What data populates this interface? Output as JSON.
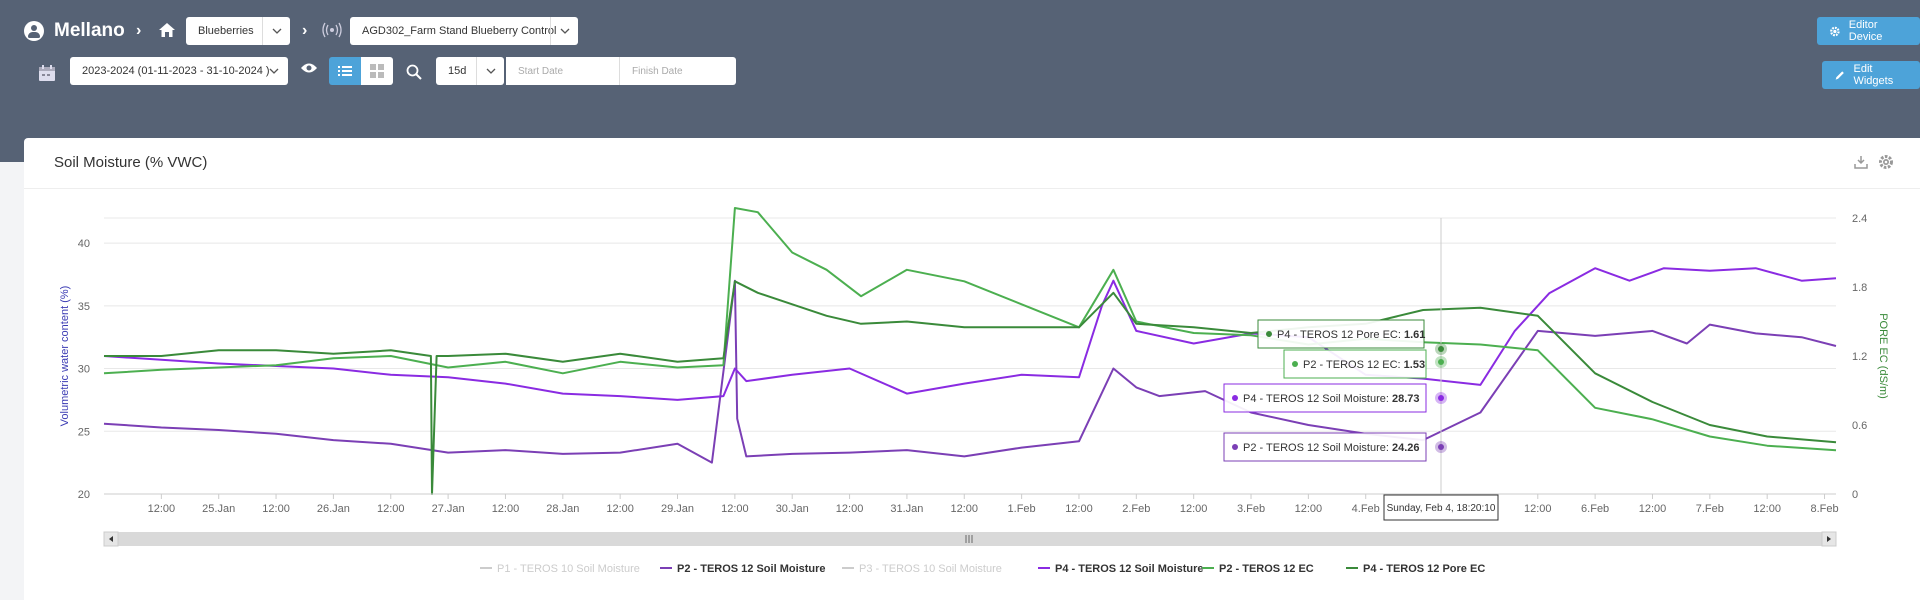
{
  "header": {
    "brand": "Mellano",
    "farm_select": "Blueberries",
    "device_select": "AGD302_Farm Stand Blueberry Control",
    "editor_device_label": "Editor Device",
    "edit_widgets_label": "Edit Widgets",
    "season_select": "2023-2024 (01-11-2023 - 31-10-2024 )",
    "range_select": "15d",
    "start_date_placeholder": "Start Date",
    "finish_date_placeholder": "Finish Date"
  },
  "widget": {
    "title": "Soil Moisture (% VWC)"
  },
  "chart_data": {
    "type": "line",
    "y_left_label": "Volumetric water content (%)",
    "y_right_label": "PORE EC (dS/m)",
    "y_left_ticks": [
      "20",
      "25",
      "30",
      "35",
      "40"
    ],
    "y_right_ticks": [
      "0",
      "0.6",
      "1.2",
      "1.8",
      "2.4"
    ],
    "y_left_range": [
      20,
      42
    ],
    "y_right_range": [
      0,
      2.4
    ],
    "x_range_days": [
      0,
      15.1
    ],
    "x_tick_labels": [
      "12:00",
      "25.Jan",
      "12:00",
      "26.Jan",
      "12:00",
      "27.Jan",
      "12:00",
      "28.Jan",
      "12:00",
      "29.Jan",
      "12:00",
      "30.Jan",
      "12:00",
      "31.Jan",
      "12:00",
      "1.Feb",
      "12:00",
      "2.Feb",
      "12:00",
      "3.Feb",
      "12:00",
      "4.Feb",
      "12:00",
      "5.Feb",
      "12:00",
      "6.Feb",
      "12:00",
      "7.Feb",
      "12:00",
      "8.Feb"
    ],
    "crosshair_label": "Sunday, Feb 4, 18:20:10",
    "tooltips": [
      {
        "series": "P4 - TEROS 12 Pore EC",
        "value": "1.61",
        "color": "#3a8a3a"
      },
      {
        "series": "P2 - TEROS 12 EC",
        "value": "1.53",
        "color": "#4caf50"
      },
      {
        "series": "P4 - TEROS 12 Soil Moisture",
        "value": "28.73",
        "color": "#8a2be2"
      },
      {
        "series": "P2 - TEROS 12 Soil Moisture",
        "value": "24.26",
        "color": "#7b3fb5"
      }
    ],
    "legend": [
      {
        "name": "P1 - TEROS 10 Soil Moisture",
        "color": "#cccccc",
        "hidden": true
      },
      {
        "name": "P2 - TEROS 12 Soil Moisture",
        "color": "#7b3fb5",
        "hidden": false
      },
      {
        "name": "P3 - TEROS 10 Soil Moisture",
        "color": "#cccccc",
        "hidden": true
      },
      {
        "name": "P4 - TEROS 12 Soil Moisture",
        "color": "#8a2be2",
        "hidden": false
      },
      {
        "name": "P2 - TEROS 12 EC",
        "color": "#4caf50",
        "hidden": false
      },
      {
        "name": "P4 - TEROS 12 Pore EC",
        "color": "#3a8a3a",
        "hidden": false
      }
    ],
    "series": [
      {
        "name": "P2 - TEROS 12 Soil Moisture",
        "axis": "left",
        "color": "#7b3fb5",
        "x": [
          0,
          0.5,
          1,
          1.5,
          2,
          2.5,
          3,
          3.5,
          4,
          4.5,
          5,
          5.3,
          5.5,
          5.52,
          5.6,
          6,
          6.5,
          7,
          7.5,
          8,
          8.5,
          8.8,
          9,
          9.2,
          9.6,
          10,
          10.5,
          11,
          11.5,
          12,
          12.5,
          13,
          13.5,
          13.8,
          14,
          14.4,
          14.8,
          15.1
        ],
        "y": [
          25.6,
          25.3,
          25.1,
          24.8,
          24.3,
          24.0,
          23.3,
          23.5,
          23.2,
          23.3,
          24,
          22.5,
          37,
          26,
          23,
          23.2,
          23.3,
          23.5,
          23,
          23.7,
          24.2,
          30,
          28.5,
          27.8,
          28.2,
          26.5,
          25.5,
          24.8,
          24.3,
          26.5,
          33,
          32.6,
          33,
          32,
          33.5,
          32.8,
          32.5,
          31.8
        ]
      },
      {
        "name": "P4 - TEROS 12 Soil Moisture",
        "axis": "left",
        "color": "#8a2be2",
        "x": [
          0,
          0.5,
          1,
          1.5,
          2,
          2.5,
          3,
          3.5,
          4,
          4.5,
          5,
          5.4,
          5.5,
          5.6,
          6,
          6.5,
          7,
          7.5,
          8,
          8.5,
          8.7,
          8.8,
          9,
          9.5,
          10,
          10.5,
          11,
          11.5,
          12,
          12.3,
          12.6,
          13,
          13.3,
          13.6,
          14,
          14.4,
          14.8,
          15.1
        ],
        "y": [
          31,
          30.7,
          30.4,
          30.2,
          30.0,
          29.5,
          29.3,
          28.8,
          28,
          27.8,
          27.5,
          27.8,
          30,
          29,
          29.5,
          30,
          28,
          28.8,
          29.5,
          29.3,
          35,
          37,
          33,
          32,
          32.8,
          32.5,
          29.5,
          29.2,
          28.7,
          33,
          36,
          38,
          37,
          38,
          37.8,
          38,
          37,
          37.2
        ]
      },
      {
        "name": "P2 - TEROS 12 EC",
        "axis": "right",
        "color": "#4caf50",
        "x": [
          0,
          0.5,
          1,
          1.5,
          2,
          2.5,
          3,
          3.5,
          4,
          4.5,
          5,
          5.4,
          5.5,
          5.7,
          6,
          6.3,
          6.6,
          7,
          7.5,
          8,
          8.5,
          8.8,
          9,
          9.5,
          10,
          10.5,
          11,
          11.5,
          12,
          12.5,
          13,
          13.5,
          14,
          14.5,
          15.1
        ],
        "y": [
          1.05,
          1.08,
          1.1,
          1.12,
          1.18,
          1.2,
          1.1,
          1.15,
          1.05,
          1.15,
          1.1,
          1.12,
          2.75,
          2.45,
          2.1,
          1.95,
          1.72,
          1.95,
          1.85,
          1.65,
          1.45,
          1.95,
          1.5,
          1.4,
          1.38,
          1.3,
          1.35,
          1.32,
          1.3,
          1.25,
          0.75,
          0.65,
          0.5,
          0.42,
          0.38
        ]
      },
      {
        "name": "P4 - TEROS 12 Pore EC",
        "axis": "right",
        "color": "#3a8a3a",
        "x": [
          0,
          0.5,
          1,
          1.5,
          2,
          2.5,
          2.85,
          2.86,
          2.9,
          3,
          3.5,
          4,
          4.5,
          5,
          5.4,
          5.5,
          5.7,
          6,
          6.3,
          6.6,
          7,
          7.5,
          8,
          8.5,
          8.8,
          9,
          9.5,
          10,
          10.5,
          11,
          11.5,
          12,
          12.5,
          13,
          13.5,
          14,
          14.5,
          15.1
        ],
        "y": [
          1.2,
          1.2,
          1.25,
          1.25,
          1.22,
          1.25,
          1.2,
          0,
          1.2,
          1.2,
          1.22,
          1.15,
          1.22,
          1.15,
          1.18,
          1.85,
          1.75,
          1.65,
          1.55,
          1.48,
          1.5,
          1.45,
          1.45,
          1.45,
          1.75,
          1.48,
          1.45,
          1.4,
          1.45,
          1.48,
          1.6,
          1.62,
          1.55,
          1.05,
          0.8,
          0.6,
          0.5,
          0.45
        ]
      }
    ]
  }
}
